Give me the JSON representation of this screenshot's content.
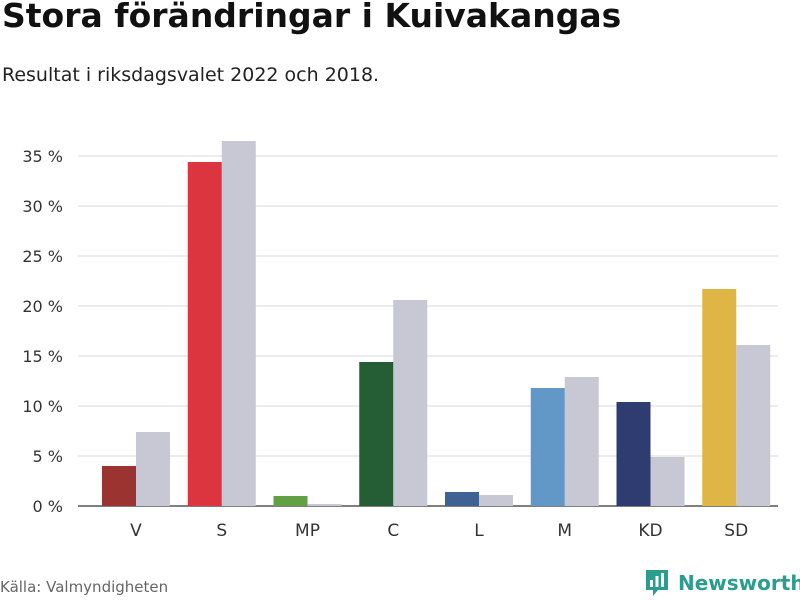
{
  "header": {
    "title": "Stora förändringar i Kuivakangas",
    "subtitle": "Resultat i riksdagsvalet 2022 och 2018."
  },
  "footer": {
    "source": "Källa: Valmyndigheten",
    "brand": "Newsworthy",
    "brand_icon": "bar-chart-logo-icon",
    "brand_color": "#2a9d8f"
  },
  "chart_data": {
    "type": "bar",
    "categories": [
      "V",
      "S",
      "MP",
      "C",
      "L",
      "M",
      "KD",
      "SD"
    ],
    "series": [
      {
        "values": [
          4.0,
          34.4,
          1.0,
          14.4,
          1.4,
          11.8,
          10.4,
          21.7
        ],
        "colors": [
          "#9b3430",
          "#dc3540",
          "#62a044",
          "#255e35",
          "#3f6194",
          "#6298c8",
          "#2f3c70",
          "#dfb545"
        ]
      },
      {
        "values": [
          7.4,
          36.5,
          0.2,
          20.6,
          1.1,
          12.9,
          4.9,
          16.1
        ],
        "color": "#c8c7d4"
      }
    ],
    "ylim": [
      0,
      35
    ],
    "yticks": [
      0,
      5,
      10,
      15,
      20,
      25,
      30,
      35
    ],
    "ytick_labels": [
      "0 %",
      "5 %",
      "10 %",
      "15 %",
      "20 %",
      "25 %",
      "30 %",
      "35 %"
    ],
    "grid": true,
    "legend": "none"
  }
}
